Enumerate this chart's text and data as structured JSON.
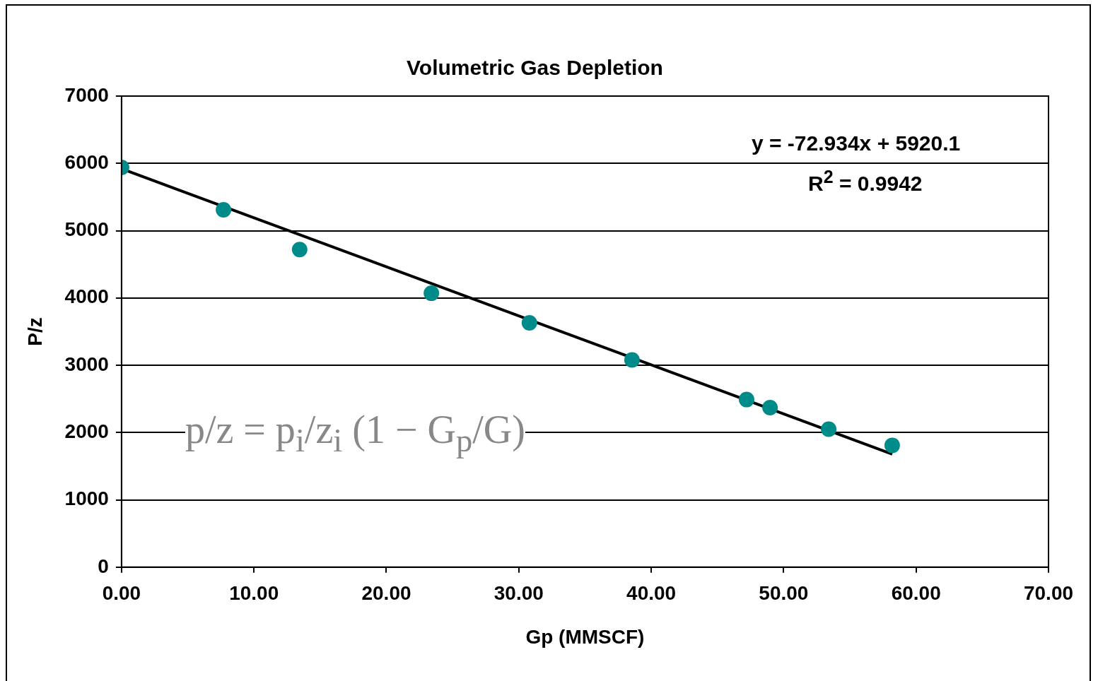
{
  "chart_data": {
    "type": "scatter",
    "title": "Volumetric Gas Depletion",
    "xlabel": "Gp (MMSCF)",
    "ylabel": "P/z",
    "series": [
      {
        "color": "#008b8b",
        "x": [
          0,
          7.7,
          13.45,
          23.4,
          30.8,
          38.55,
          47.2,
          48.97,
          53.4,
          58.2
        ],
        "values": [
          5940,
          5310,
          4720,
          4070,
          3630,
          3080,
          2490,
          2370,
          2050,
          1810
        ]
      },
      {
        "type": "line",
        "color": "#000000",
        "marker": "none",
        "x": [
          0,
          58.2
        ],
        "values": [
          5920,
          1680
        ]
      }
    ],
    "xlim": [
      0,
      70
    ],
    "xticks": [
      {
        "value": 0,
        "label": "0.00"
      },
      {
        "value": 10,
        "label": "10.00"
      },
      {
        "value": 20,
        "label": "20.00"
      },
      {
        "value": 30,
        "label": "30.00"
      },
      {
        "value": 40,
        "label": "40.00"
      },
      {
        "value": 50,
        "label": "50.00"
      },
      {
        "value": 60,
        "label": "60.00"
      },
      {
        "value": 70,
        "label": "70.00"
      }
    ],
    "ylim": [
      0,
      7000
    ],
    "yticks": [
      0,
      1000,
      2000,
      3000,
      4000,
      5000,
      6000,
      7000
    ],
    "grid": "y",
    "legend": false,
    "marker": "circle",
    "annotations": [
      "y = -72.934x + 5920.1",
      "R$^{2}$ = 0.9942",
      "p/z = p$_{i}$/z$_{i}$ (1 − G$_{p}$/G)"
    ]
  }
}
